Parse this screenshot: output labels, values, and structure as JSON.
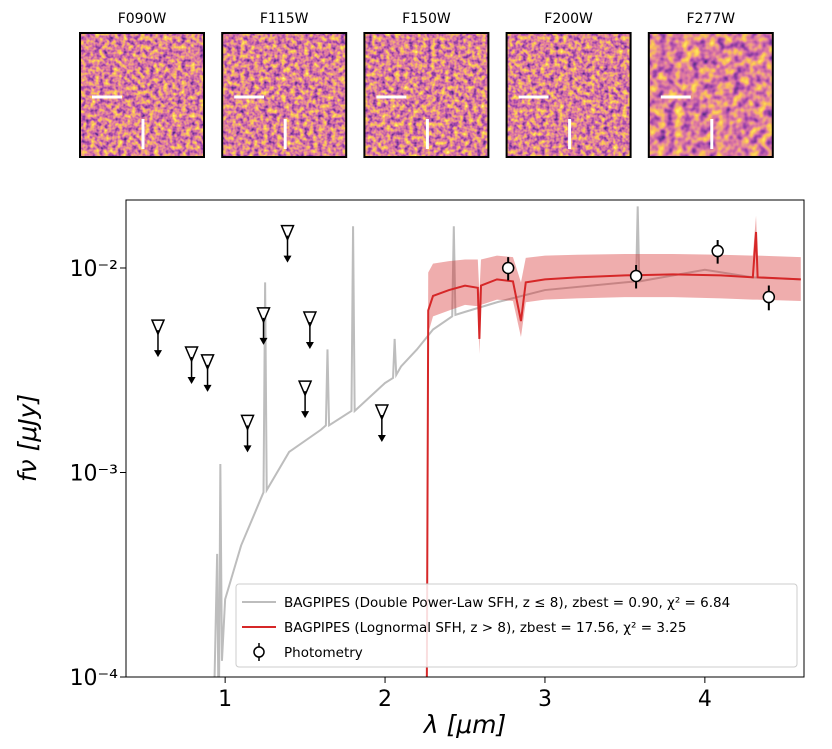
{
  "chart_data": {
    "type": "sed",
    "cutouts": [
      "F090W",
      "F115W",
      "F150W",
      "F200W",
      "F277W"
    ],
    "x_label": "λ [μm]",
    "y_label": "fν [μJy]",
    "xlim": [
      0.38,
      4.62
    ],
    "xticks": [
      1,
      2,
      3,
      4
    ],
    "ylim": [
      0.0001,
      0.0215
    ],
    "yticks": [
      {
        "value": 0.0001,
        "label": "10⁻⁴"
      },
      {
        "value": 0.001,
        "label": "10⁻³"
      },
      {
        "value": 0.01,
        "label": "10⁻²"
      }
    ],
    "log_y": true,
    "legend_position": "lower right",
    "series": [
      {
        "name": "BAGPIPES (Double Power-Law SFH, z ≤ 8), zbest = 0.90, χ² = 6.84",
        "color": "#bdbdbd",
        "x": [
          0.92,
          0.95,
          0.96,
          0.97,
          0.98,
          1.0,
          1.1,
          1.24,
          1.25,
          1.26,
          1.4,
          1.6,
          1.63,
          1.64,
          1.65,
          1.79,
          1.8,
          1.81,
          2.0,
          2.05,
          2.06,
          2.07,
          2.1,
          2.2,
          2.3,
          2.42,
          2.43,
          2.44,
          2.5,
          2.7,
          3.0,
          3.5,
          3.57,
          3.58,
          3.59,
          4.0,
          4.3,
          4.6
        ],
        "values": [
          3e-05,
          0.0004,
          5e-05,
          0.0011,
          0.00012,
          0.00024,
          0.00044,
          0.0008,
          0.0085,
          0.00082,
          0.00126,
          0.00162,
          0.0017,
          0.004,
          0.0017,
          0.002,
          0.016,
          0.002,
          0.00274,
          0.0029,
          0.0045,
          0.003,
          0.0033,
          0.004,
          0.005,
          0.0058,
          0.016,
          0.0059,
          0.0061,
          0.0068,
          0.0078,
          0.0085,
          0.0086,
          0.02,
          0.0086,
          0.0098,
          0.009,
          0.0088
        ]
      },
      {
        "name": "BAGPIPES (Lognormal SFH, z > 8), zbest = 17.56, χ² = 3.25",
        "color": "#d62728",
        "x": [
          2.26,
          2.27,
          2.3,
          2.4,
          2.5,
          2.58,
          2.59,
          2.6,
          2.7,
          2.8,
          2.85,
          2.88,
          3.0,
          3.2,
          3.5,
          3.8,
          4.1,
          4.3,
          4.32,
          4.33,
          4.6
        ],
        "values": [
          5e-05,
          0.0062,
          0.0073,
          0.0078,
          0.0082,
          0.008,
          0.0045,
          0.0082,
          0.0088,
          0.0086,
          0.0055,
          0.0085,
          0.0088,
          0.009,
          0.0092,
          0.0093,
          0.0092,
          0.009,
          0.015,
          0.009,
          0.0088
        ],
        "band_lower": [
          5e-05,
          0.0048,
          0.0058,
          0.0062,
          0.0066,
          0.0065,
          0.0038,
          0.0066,
          0.007,
          0.0069,
          0.0046,
          0.0068,
          0.007,
          0.0071,
          0.0072,
          0.0072,
          0.0071,
          0.007,
          0.007,
          0.007,
          0.0069
        ],
        "band_upper": [
          5e-05,
          0.0095,
          0.0105,
          0.0108,
          0.011,
          0.011,
          0.0075,
          0.011,
          0.0115,
          0.0113,
          0.0085,
          0.0112,
          0.0115,
          0.0116,
          0.0117,
          0.0117,
          0.0116,
          0.0115,
          0.018,
          0.0115,
          0.0113
        ]
      }
    ],
    "photometry": {
      "name": "Photometry",
      "x": [
        2.77,
        3.57,
        4.08,
        4.4
      ],
      "values": [
        0.01,
        0.00914,
        0.0121,
        0.00721
      ],
      "errors": [
        0.0013,
        0.0012,
        0.0016,
        0.001
      ]
    },
    "upper_limits": {
      "x": [
        0.58,
        0.79,
        0.89,
        1.14,
        1.24,
        1.39,
        1.5,
        1.53,
        1.98
      ],
      "values": [
        0.00497,
        0.00367,
        0.00336,
        0.0017,
        0.0057,
        0.0144,
        0.0025,
        0.00544,
        0.00191
      ]
    }
  }
}
